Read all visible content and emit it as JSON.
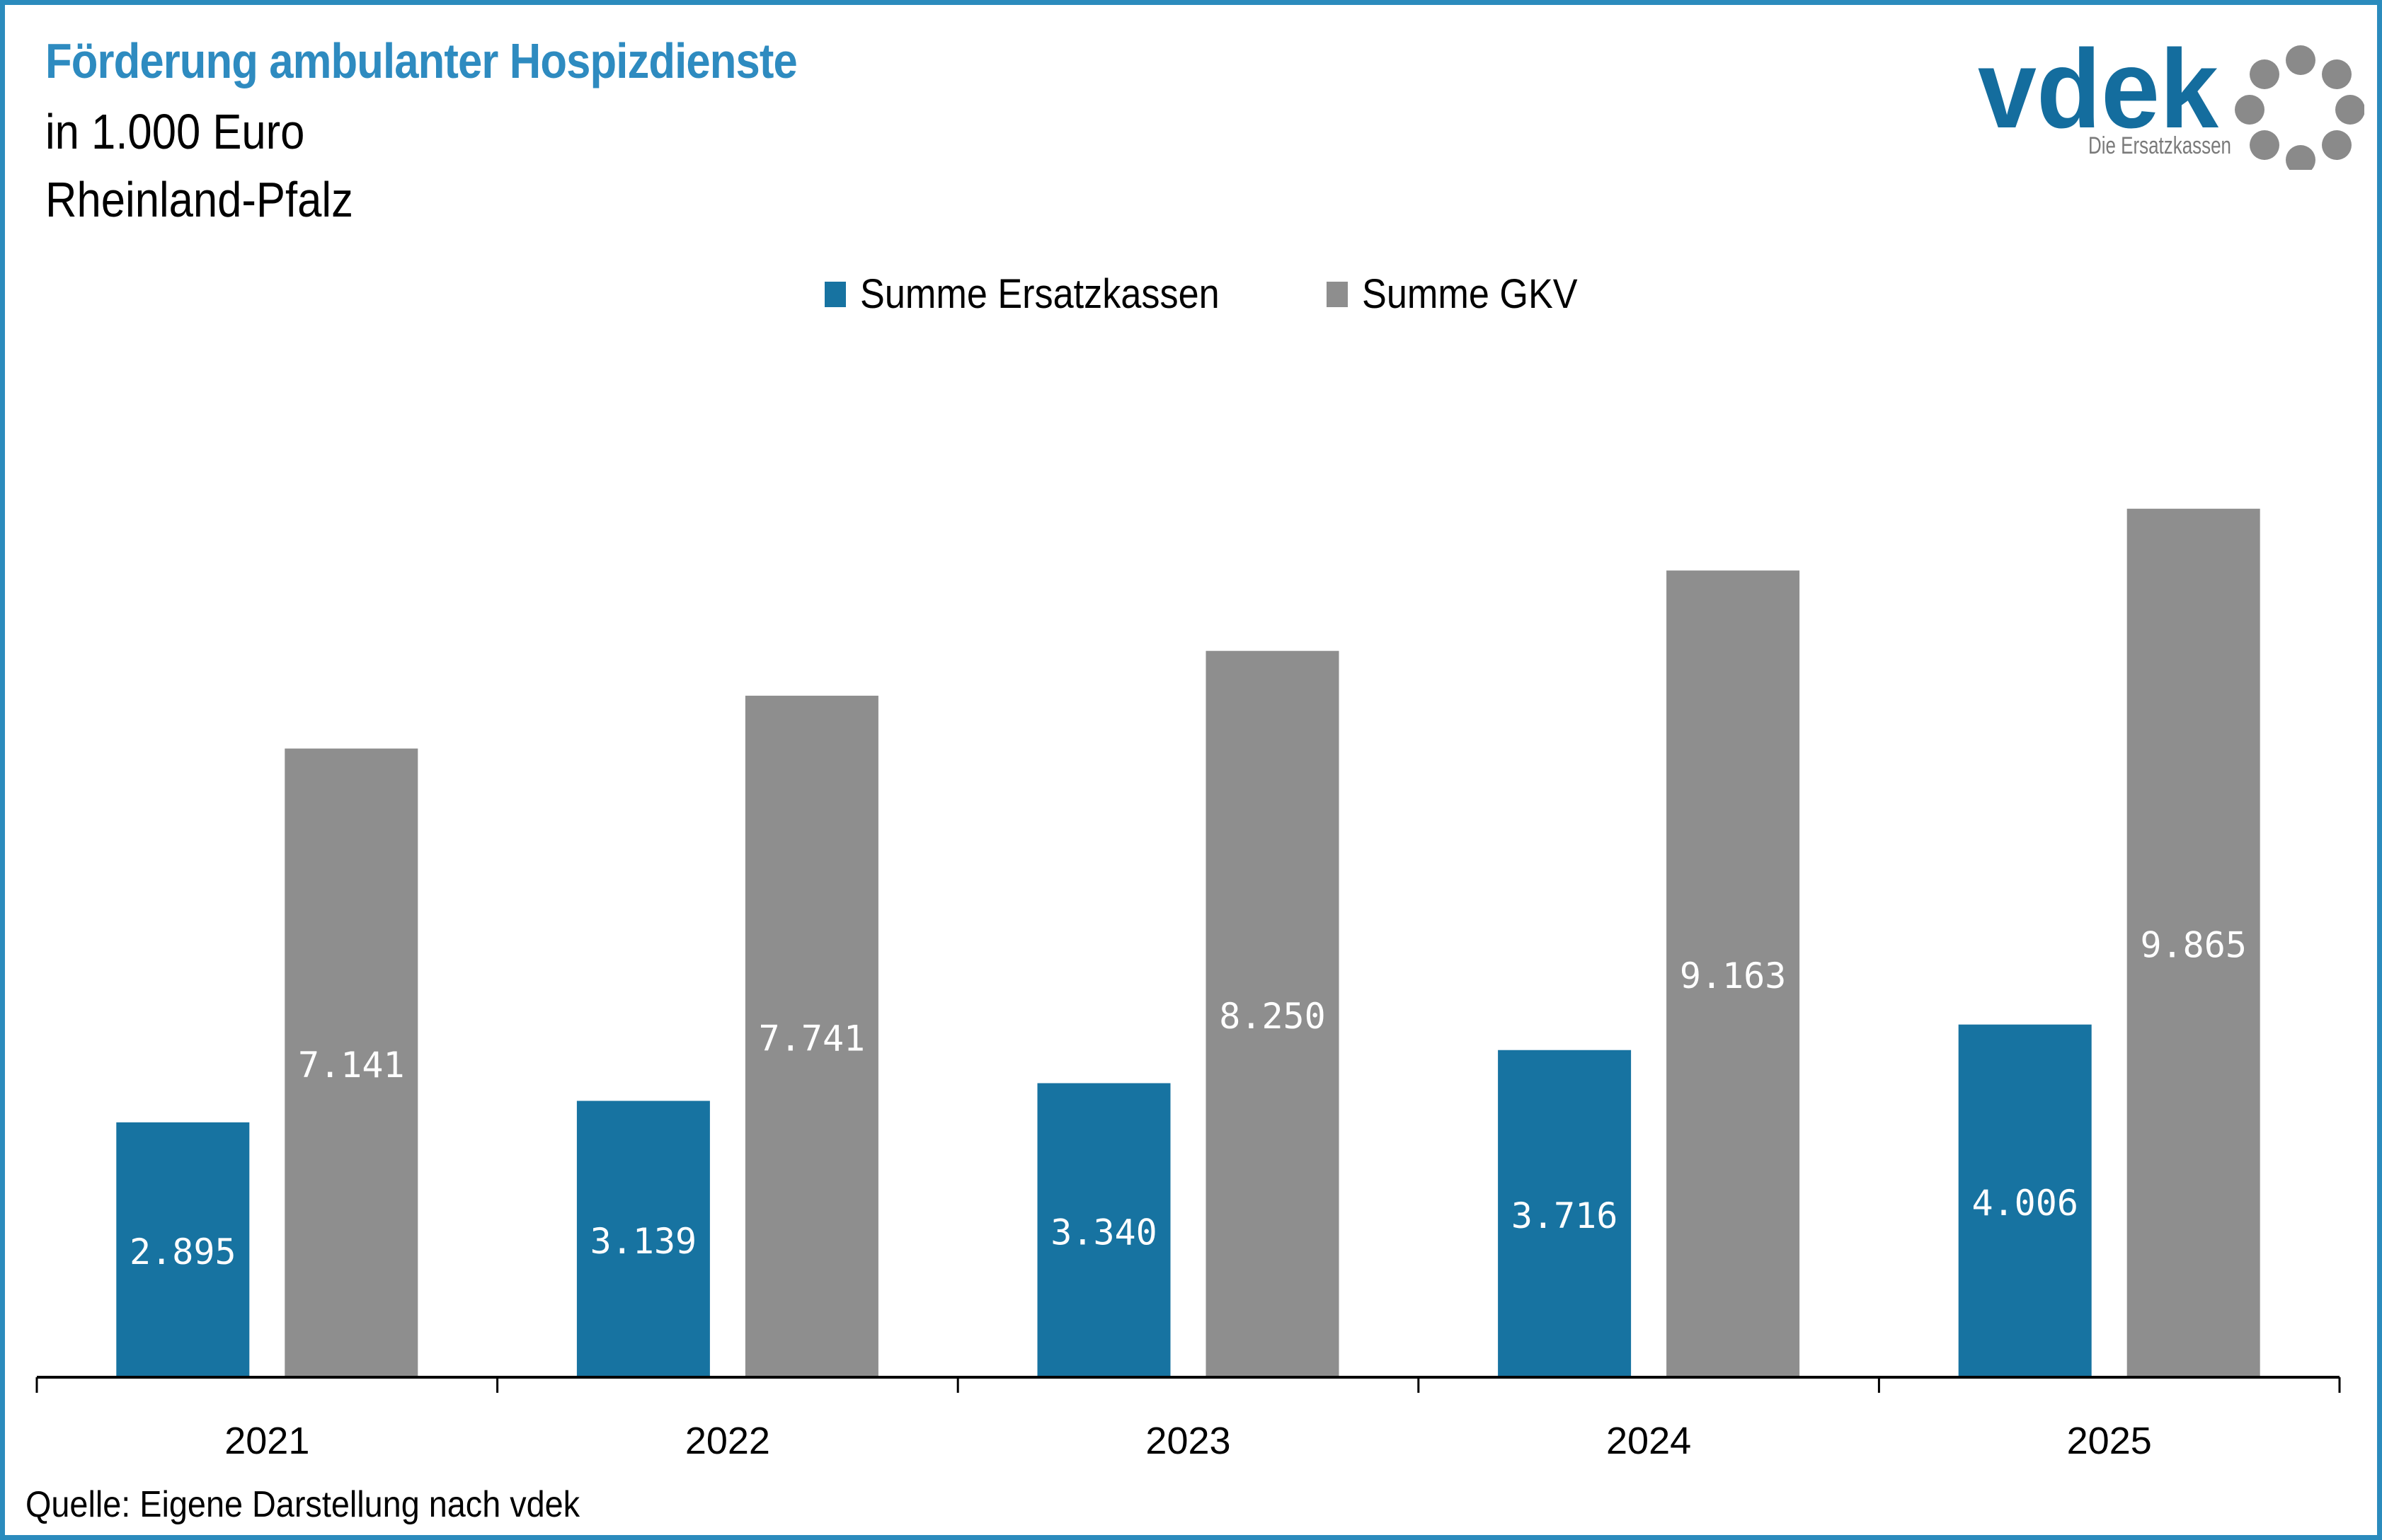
{
  "header": {
    "title": "Förderung ambulanter Hospizdienste",
    "subtitle_unit": "in 1.000 Euro",
    "subtitle_region": "Rheinland-Pfalz"
  },
  "logo": {
    "wordmark": "vdek",
    "tagline": "Die Ersatzkassen",
    "icon": "ring-of-dots-icon"
  },
  "source": "Quelle: Eigene Darstellung nach vdek",
  "colors": {
    "frame": "#2b8bbd",
    "title": "#2e8bc0",
    "ersatzkassen": "#1773a1",
    "gkv": "#8e8e8e",
    "logo_blue": "#146d9e",
    "logo_gray": "#8a8a8a"
  },
  "chart_data": {
    "type": "bar",
    "title": "Förderung ambulanter Hospizdienste",
    "subtitle": "in 1.000 Euro, Rheinland-Pfalz",
    "xlabel": "",
    "ylabel": "",
    "categories": [
      "2021",
      "2022",
      "2023",
      "2024",
      "2025"
    ],
    "series": [
      {
        "name": "Summe Ersatzkassen",
        "color": "#1773a1",
        "values": [
          2895,
          3139,
          3340,
          3716,
          4006
        ],
        "labels": [
          "2.895",
          "3.139",
          "3.340",
          "3.716",
          "4.006"
        ]
      },
      {
        "name": "Summe GKV",
        "color": "#8e8e8e",
        "values": [
          7141,
          7741,
          8250,
          9163,
          9865
        ],
        "labels": [
          "7.141",
          "7.741",
          "8.250",
          "9.163",
          "9.865"
        ]
      }
    ],
    "ylim": [
      0,
      10500
    ],
    "grid": false,
    "y_axis_visible": false,
    "legend": "top-center",
    "data_labels": "inside-bar"
  }
}
